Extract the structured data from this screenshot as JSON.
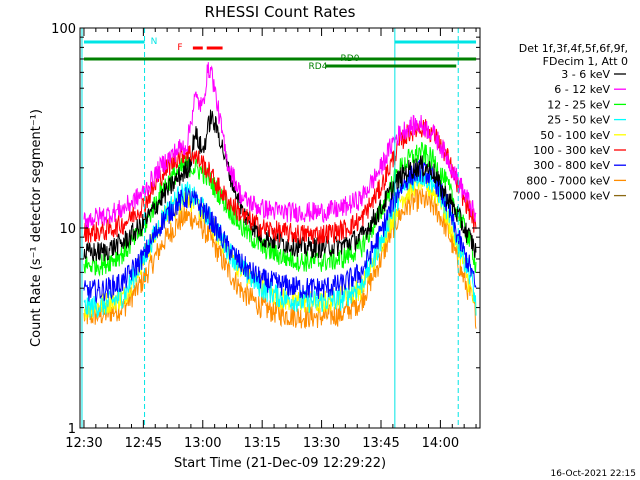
{
  "chart_data": {
    "type": "line",
    "title": "RHESSI Count Rates",
    "xlabel": "Start Time (21-Dec-09 12:29:22)",
    "ylabel": "Count Rate (s⁻¹ detector segment⁻¹)",
    "yscale": "log",
    "xlim_minutes": [
      -1,
      100
    ],
    "ylim": [
      1,
      100
    ],
    "x_ticks": [
      "12:30",
      "12:45",
      "13:00",
      "13:15",
      "13:30",
      "13:45",
      "14:00"
    ],
    "y_ticks": [
      "1",
      "10",
      "100"
    ],
    "timestamp": "16-Oct-2021 22:15",
    "legend_header": [
      "Det 1f,3f,4f,5f,6f,9f,",
      "FDecim 1, Att 0"
    ],
    "annotations": {
      "N": "N",
      "F": "F",
      "RD0": "RD0",
      "RD4": "RD4"
    },
    "series": [
      {
        "name": "3 - 6 keV",
        "color": "#000000",
        "x": [
          0,
          5,
          10,
          15,
          20,
          24,
          26,
          27,
          28,
          30,
          32,
          34,
          36,
          40,
          45,
          50,
          55,
          60,
          65,
          70,
          75,
          78,
          80,
          82,
          85,
          88,
          90,
          92,
          94,
          96,
          98,
          99
        ],
        "y": [
          7.5,
          7.6,
          8.5,
          10.5,
          14.5,
          18,
          19.5,
          22,
          30,
          24,
          36,
          30,
          21,
          12,
          9,
          8.5,
          8,
          8,
          8.2,
          9,
          12.5,
          16,
          18,
          19.5,
          20.5,
          19.5,
          16,
          14,
          12,
          10,
          8.5,
          7.5
        ]
      },
      {
        "name": "6 - 12 keV",
        "color": "#ff00ff",
        "x": [
          0,
          5,
          10,
          15,
          20,
          24,
          26,
          27,
          28,
          30,
          31,
          32,
          34,
          36,
          40,
          45,
          50,
          55,
          60,
          65,
          70,
          75,
          78,
          80,
          82,
          85,
          88,
          90,
          92,
          94,
          96,
          98,
          99
        ],
        "y": [
          11,
          11.5,
          12.5,
          15,
          21,
          25,
          26,
          34,
          45,
          40,
          58,
          64,
          38,
          22,
          14,
          12.5,
          12,
          12,
          12,
          12.5,
          14,
          20,
          27,
          30,
          32,
          33,
          30,
          26,
          22,
          18,
          15,
          12.5,
          11
        ]
      },
      {
        "name": "12 - 25 keV",
        "color": "#00ff00",
        "x": [
          0,
          5,
          10,
          15,
          20,
          24,
          26,
          28,
          30,
          32,
          34,
          36,
          40,
          45,
          50,
          55,
          60,
          65,
          70,
          75,
          78,
          80,
          82,
          85,
          88,
          90,
          92,
          94,
          96,
          98,
          99
        ],
        "y": [
          6.5,
          6.6,
          7.5,
          10,
          16,
          19.5,
          20.5,
          20,
          19,
          17,
          15,
          13,
          10,
          8,
          7.2,
          6.8,
          6.8,
          7,
          8,
          12,
          17,
          20,
          22,
          24,
          22,
          19,
          16,
          12.5,
          10,
          8,
          6.5
        ]
      },
      {
        "name": "25 - 50 keV",
        "color": "#00ffff",
        "x": [
          0,
          5,
          10,
          15,
          20,
          24,
          26,
          28,
          30,
          32,
          34,
          36,
          40,
          45,
          50,
          55,
          60,
          65,
          70,
          75,
          78,
          80,
          82,
          85,
          88,
          90,
          92,
          94,
          96,
          98,
          99
        ],
        "y": [
          4,
          4.1,
          4.6,
          7,
          11.5,
          14.5,
          15,
          14,
          12.5,
          11,
          9.5,
          8,
          6.2,
          5,
          4.5,
          4.3,
          4.3,
          4.4,
          5.2,
          8.5,
          12.5,
          15,
          17,
          18.5,
          17,
          14.5,
          12,
          9,
          7,
          5.5,
          4
        ]
      },
      {
        "name": "50 - 100 keV",
        "color": "#ffff00",
        "x": [
          0,
          10,
          20,
          26,
          30,
          40,
          50,
          60,
          70,
          80,
          85,
          90,
          96,
          99
        ],
        "y": [
          3.9,
          4.5,
          11,
          14.5,
          12,
          6,
          4.4,
          4.2,
          5,
          14,
          17.5,
          14,
          6.5,
          3.9
        ]
      },
      {
        "name": "100 - 300 keV",
        "color": "#ff0000",
        "x": [
          0,
          5,
          10,
          15,
          20,
          24,
          26,
          28,
          30,
          32,
          34,
          36,
          40,
          45,
          50,
          55,
          60,
          65,
          70,
          75,
          78,
          80,
          82,
          85,
          88,
          90,
          92,
          94,
          96,
          98,
          99
        ],
        "y": [
          9.5,
          9.6,
          10.5,
          13,
          19,
          23,
          24,
          23,
          21,
          18.5,
          16,
          14,
          11.5,
          10,
          9.5,
          9.3,
          9.3,
          9.7,
          11,
          16,
          22,
          27,
          30,
          32,
          30,
          26,
          22,
          17,
          14,
          11.5,
          9.5
        ]
      },
      {
        "name": "300 - 800 keV",
        "color": "#0000ff",
        "x": [
          0,
          5,
          10,
          15,
          20,
          24,
          26,
          28,
          30,
          32,
          34,
          36,
          40,
          45,
          50,
          55,
          60,
          65,
          70,
          75,
          78,
          80,
          82,
          85,
          88,
          90,
          92,
          94,
          96,
          98,
          99
        ],
        "y": [
          4.8,
          4.9,
          5.4,
          7.2,
          11,
          13.5,
          14.2,
          13.6,
          12.5,
          11,
          9.5,
          8.2,
          6.5,
          5.5,
          5.2,
          5,
          5,
          5.2,
          6,
          9.5,
          13.5,
          16,
          18,
          19.5,
          18,
          15.5,
          12.5,
          9.5,
          7.5,
          6,
          4.8
        ]
      },
      {
        "name": "800 - 7000 keV",
        "color": "#ff8c00",
        "x": [
          0,
          5,
          10,
          15,
          20,
          24,
          26,
          28,
          30,
          32,
          34,
          36,
          40,
          45,
          50,
          55,
          60,
          65,
          70,
          75,
          78,
          80,
          82,
          85,
          88,
          90,
          92,
          94,
          96,
          98,
          99
        ],
        "y": [
          3.6,
          3.7,
          4,
          5.5,
          8.5,
          10.8,
          11.5,
          11,
          10,
          8.8,
          7.5,
          6.3,
          4.8,
          4,
          3.7,
          3.6,
          3.6,
          3.7,
          4.3,
          7,
          10,
          11.8,
          13.2,
          14,
          13,
          11.5,
          9.5,
          7.2,
          5.5,
          4.4,
          3.6
        ]
      },
      {
        "name": "7000 - 15000 keV",
        "color": "#8b6914",
        "x": [],
        "y": []
      }
    ]
  }
}
